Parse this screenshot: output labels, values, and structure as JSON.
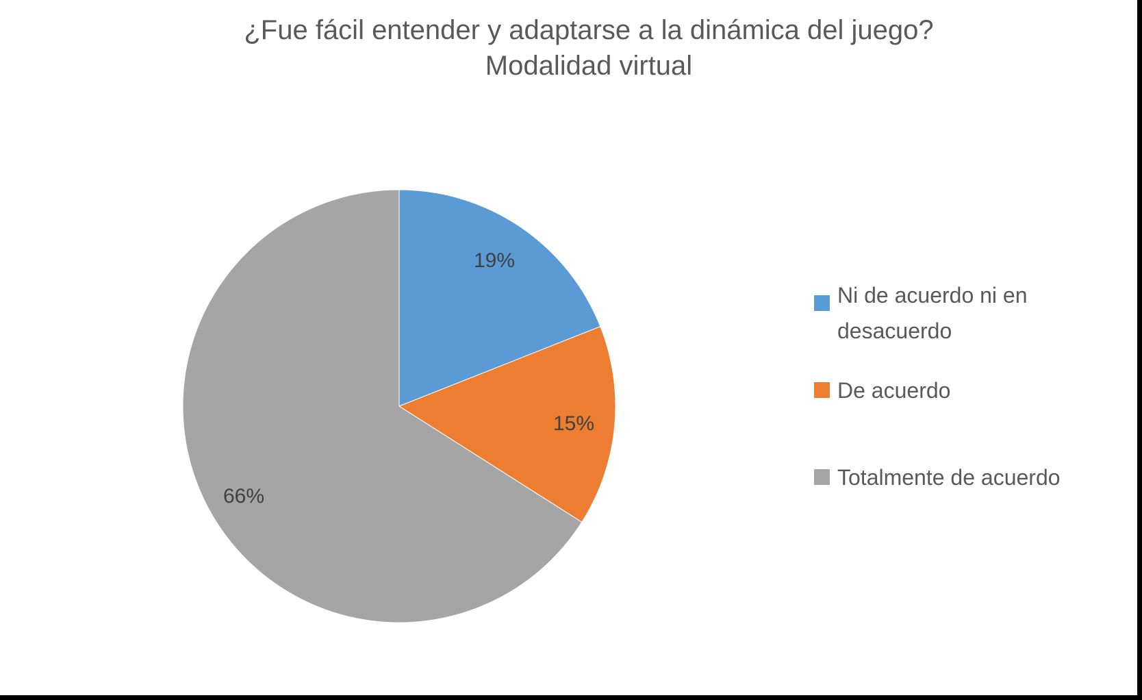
{
  "chart_data": {
    "type": "pie",
    "title": "¿Fue fácil entender y adaptarse a la dinámica del juego? Modalidad virtual",
    "title_lines": [
      "¿Fue fácil entender y adaptarse a la dinámica del juego?",
      "Modalidad virtual"
    ],
    "categories": [
      "Ni de acuerdo ni en desacuerdo",
      "De acuerdo",
      "Totalmente de acuerdo"
    ],
    "values": [
      19,
      15,
      66
    ],
    "value_labels": [
      "19%",
      "15%",
      "66%"
    ],
    "colors": [
      "#5B9BD5",
      "#ED7D31",
      "#A5A5A5"
    ],
    "legend_position": "right",
    "start_angle_deg": 0,
    "direction": "clockwise"
  },
  "legend": {
    "items": [
      {
        "label_line1": "Ni de acuerdo ni en",
        "label_line2": "desacuerdo",
        "color": "#5B9BD5"
      },
      {
        "label_line1": "De acuerdo",
        "color": "#ED7D31"
      },
      {
        "label_line1": "Totalmente de acuerdo",
        "color": "#A5A5A5"
      }
    ]
  }
}
